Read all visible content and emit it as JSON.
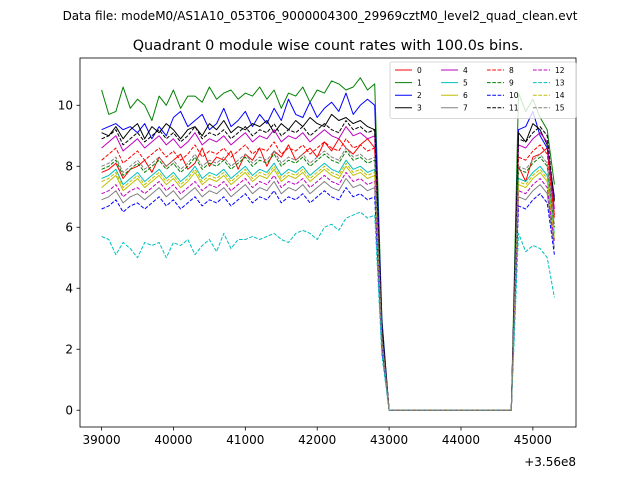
{
  "chart_data": {
    "type": "line",
    "suptitle": "Data file: modeM0/AS1A10_053T06_9000004300_29969cztM0_level2_quad_clean.evt",
    "title": "Quadrant 0 module wise count rates with 100.0s bins.",
    "xlabel": "",
    "ylabel": "",
    "x_offset_label": "+3.56e8",
    "xlim": [
      38700,
      45600
    ],
    "ylim": [
      -0.55,
      11.55
    ],
    "xticks": [
      39000,
      40000,
      41000,
      42000,
      43000,
      44000,
      45000
    ],
    "yticks": [
      0,
      2,
      4,
      6,
      8,
      10
    ],
    "x": [
      39000,
      39100,
      39200,
      39300,
      39400,
      39500,
      39600,
      39700,
      39800,
      39900,
      40000,
      40100,
      40200,
      40300,
      40400,
      40500,
      40600,
      40700,
      40800,
      40900,
      41000,
      41100,
      41200,
      41300,
      41400,
      41500,
      41600,
      41700,
      41800,
      41900,
      42000,
      42100,
      42200,
      42300,
      42400,
      42500,
      42600,
      42700,
      42800,
      42900,
      43000,
      43100,
      43200,
      43300,
      43400,
      43500,
      43600,
      43700,
      43800,
      43900,
      44000,
      44100,
      44200,
      44300,
      44400,
      44500,
      44600,
      44700,
      44800,
      44900,
      45000,
      45100,
      45200,
      45300
    ],
    "legend_loc": "upper right",
    "series": [
      {
        "name": "0",
        "color": "#ff0000",
        "dash": "solid",
        "values": [
          7.8,
          7.9,
          8.1,
          7.6,
          7.9,
          8.0,
          8.2,
          7.8,
          8.3,
          8.0,
          8.2,
          8.4,
          7.9,
          8.1,
          8.6,
          8.0,
          8.3,
          8.2,
          8.5,
          7.9,
          8.4,
          8.2,
          8.6,
          8.0,
          8.5,
          8.3,
          8.7,
          8.2,
          8.4,
          8.6,
          8.3,
          8.8,
          8.5,
          8.9,
          8.6,
          8.4,
          8.7,
          8.9,
          8.6,
          2.5,
          0,
          0,
          0,
          0,
          0,
          0,
          0,
          0,
          0,
          0,
          0,
          0,
          0,
          0,
          0,
          0,
          0,
          0,
          8.0,
          7.5,
          8.3,
          8.4,
          8.6,
          6.4
        ]
      },
      {
        "name": "1",
        "color": "#008000",
        "dash": "solid",
        "values": [
          10.5,
          9.7,
          9.8,
          10.6,
          9.9,
          10.2,
          10.0,
          9.5,
          10.3,
          10.0,
          10.5,
          9.9,
          10.3,
          10.3,
          10.1,
          10.6,
          10.2,
          10.4,
          10.5,
          10.2,
          10.4,
          10.3,
          10.6,
          10.2,
          10.5,
          9.9,
          10.4,
          10.3,
          10.6,
          10.1,
          10.5,
          10.4,
          10.8,
          10.7,
          10.5,
          10.6,
          10.9,
          10.5,
          10.7,
          3.0,
          0,
          0,
          0,
          0,
          0,
          0,
          0,
          0,
          0,
          0,
          0,
          0,
          0,
          0,
          0,
          0,
          0,
          0,
          10.4,
          9.8,
          10.2,
          9.6,
          9.2,
          7.4
        ]
      },
      {
        "name": "2",
        "color": "#0000ff",
        "dash": "solid",
        "values": [
          9.2,
          9.3,
          9.4,
          9.2,
          9.3,
          9.1,
          9.4,
          8.9,
          9.3,
          9.0,
          9.6,
          9.8,
          9.3,
          9.5,
          9.7,
          9.2,
          9.4,
          9.9,
          9.3,
          9.5,
          9.8,
          9.3,
          9.7,
          9.4,
          9.9,
          9.5,
          10.2,
          9.7,
          9.6,
          10.1,
          9.6,
          9.9,
          10.1,
          9.8,
          10.4,
          9.7,
          10.0,
          10.2,
          10.0,
          2.9,
          0,
          0,
          0,
          0,
          0,
          0,
          0,
          0,
          0,
          0,
          0,
          0,
          0,
          0,
          0,
          0,
          0,
          0,
          9.2,
          9.3,
          9.8,
          9.0,
          8.6,
          7.0
        ]
      },
      {
        "name": "3",
        "color": "#000000",
        "dash": "solid",
        "values": [
          9.1,
          9.0,
          9.3,
          8.9,
          9.2,
          9.4,
          8.9,
          9.3,
          9.1,
          9.4,
          9.2,
          8.9,
          9.2,
          9.3,
          9.0,
          9.4,
          9.2,
          9.5,
          9.1,
          9.3,
          9.2,
          9.4,
          9.3,
          9.5,
          9.1,
          9.4,
          9.2,
          9.5,
          9.3,
          9.6,
          9.4,
          9.3,
          9.7,
          9.5,
          9.6,
          9.4,
          9.5,
          9.3,
          9.2,
          2.7,
          0,
          0,
          0,
          0,
          0,
          0,
          0,
          0,
          0,
          0,
          0,
          0,
          0,
          0,
          0,
          0,
          0,
          0,
          9.1,
          8.8,
          9.4,
          9.2,
          8.7,
          6.9
        ]
      },
      {
        "name": "4",
        "color": "#bf00bf",
        "dash": "solid",
        "values": [
          8.6,
          8.8,
          9.0,
          8.5,
          8.7,
          8.9,
          8.6,
          8.8,
          9.0,
          8.7,
          8.9,
          8.6,
          8.8,
          9.1,
          8.7,
          8.9,
          8.8,
          9.0,
          8.7,
          8.9,
          9.1,
          8.8,
          9.0,
          8.9,
          9.2,
          8.8,
          9.0,
          8.9,
          9.1,
          8.8,
          9.0,
          9.2,
          9.0,
          8.9,
          9.3,
          9.0,
          9.1,
          8.9,
          9.0,
          2.6,
          0,
          0,
          0,
          0,
          0,
          0,
          0,
          0,
          0,
          0,
          0,
          0,
          0,
          0,
          0,
          0,
          0,
          0,
          8.7,
          8.6,
          8.9,
          9.1,
          8.8,
          6.6
        ]
      },
      {
        "name": "5",
        "color": "#00bfbf",
        "dash": "solid",
        "values": [
          7.6,
          7.7,
          7.9,
          7.4,
          7.6,
          7.8,
          7.5,
          7.7,
          7.9,
          7.6,
          7.8,
          7.5,
          7.7,
          8.0,
          7.6,
          7.8,
          7.7,
          7.9,
          7.6,
          7.8,
          8.0,
          7.7,
          7.9,
          7.8,
          8.1,
          7.7,
          7.9,
          7.8,
          8.0,
          7.7,
          7.9,
          8.1,
          7.9,
          7.8,
          8.2,
          7.9,
          8.0,
          7.8,
          7.9,
          2.3,
          0,
          0,
          0,
          0,
          0,
          0,
          0,
          0,
          0,
          0,
          0,
          0,
          0,
          0,
          0,
          0,
          0,
          0,
          7.6,
          7.5,
          7.8,
          8.0,
          7.7,
          5.8
        ]
      },
      {
        "name": "6",
        "color": "#bfbf00",
        "dash": "solid",
        "values": [
          7.3,
          7.5,
          7.7,
          7.2,
          7.4,
          7.6,
          7.3,
          7.5,
          7.7,
          7.4,
          7.6,
          7.3,
          7.5,
          7.8,
          7.4,
          7.6,
          7.5,
          7.7,
          7.4,
          7.6,
          7.8,
          7.5,
          7.7,
          7.6,
          7.9,
          7.5,
          7.7,
          7.6,
          7.8,
          7.5,
          7.7,
          7.9,
          7.7,
          7.6,
          8.0,
          7.7,
          7.8,
          7.6,
          7.7,
          2.2,
          0,
          0,
          0,
          0,
          0,
          0,
          0,
          0,
          0,
          0,
          0,
          0,
          0,
          0,
          0,
          0,
          0,
          0,
          7.4,
          7.3,
          7.6,
          7.8,
          7.5,
          5.6
        ]
      },
      {
        "name": "7",
        "color": "#808080",
        "dash": "solid",
        "values": [
          6.9,
          7.0,
          7.2,
          6.8,
          7.0,
          7.1,
          6.9,
          7.1,
          7.3,
          7.0,
          7.2,
          6.9,
          7.1,
          7.3,
          7.0,
          7.2,
          7.1,
          7.3,
          7.0,
          7.2,
          7.4,
          7.1,
          7.3,
          7.2,
          7.5,
          7.1,
          7.3,
          7.2,
          7.4,
          7.1,
          7.3,
          7.5,
          7.3,
          7.2,
          7.6,
          7.3,
          7.4,
          7.2,
          7.3,
          2.1,
          0,
          0,
          0,
          0,
          0,
          0,
          0,
          0,
          0,
          0,
          0,
          0,
          0,
          0,
          0,
          0,
          0,
          0,
          7.0,
          6.9,
          7.2,
          7.4,
          7.1,
          5.3
        ]
      },
      {
        "name": "8",
        "color": "#ff0000",
        "dash": "dashed",
        "values": [
          8.2,
          8.4,
          8.6,
          8.1,
          8.3,
          8.5,
          8.2,
          8.4,
          8.6,
          8.3,
          8.5,
          8.2,
          8.4,
          8.7,
          8.3,
          8.5,
          8.4,
          8.6,
          8.3,
          8.5,
          8.7,
          8.4,
          8.6,
          8.5,
          8.8,
          8.4,
          8.6,
          8.5,
          8.7,
          8.4,
          8.6,
          8.8,
          8.6,
          8.5,
          8.9,
          8.6,
          8.7,
          8.5,
          8.6,
          2.5,
          0,
          0,
          0,
          0,
          0,
          0,
          0,
          0,
          0,
          0,
          0,
          0,
          0,
          0,
          0,
          0,
          0,
          0,
          8.3,
          8.2,
          8.5,
          8.7,
          8.4,
          6.3
        ]
      },
      {
        "name": "9",
        "color": "#008000",
        "dash": "dashed",
        "values": [
          7.9,
          8.0,
          8.2,
          7.7,
          7.9,
          8.1,
          7.8,
          8.0,
          8.2,
          7.9,
          8.1,
          7.8,
          8.0,
          8.3,
          7.9,
          8.1,
          8.0,
          8.2,
          7.9,
          8.1,
          8.3,
          8.0,
          8.2,
          8.1,
          8.4,
          8.0,
          8.2,
          8.1,
          8.3,
          8.0,
          8.2,
          8.4,
          8.2,
          8.1,
          8.5,
          8.2,
          8.3,
          8.1,
          8.2,
          2.4,
          0,
          0,
          0,
          0,
          0,
          0,
          0,
          0,
          0,
          0,
          0,
          0,
          0,
          0,
          0,
          0,
          0,
          0,
          7.9,
          7.8,
          8.1,
          8.3,
          8.0,
          6.0
        ]
      },
      {
        "name": "10",
        "color": "#0000ff",
        "dash": "dashed",
        "values": [
          6.6,
          6.7,
          6.9,
          6.5,
          6.7,
          6.8,
          6.6,
          6.8,
          7.0,
          6.7,
          6.9,
          6.6,
          6.8,
          7.0,
          6.7,
          6.9,
          6.8,
          7.0,
          6.7,
          6.9,
          7.1,
          6.8,
          7.0,
          6.9,
          7.2,
          6.8,
          7.0,
          6.9,
          7.1,
          6.8,
          7.0,
          7.2,
          7.0,
          6.9,
          7.3,
          7.0,
          7.1,
          6.9,
          7.0,
          2.0,
          0,
          0,
          0,
          0,
          0,
          0,
          0,
          0,
          0,
          0,
          0,
          0,
          0,
          0,
          0,
          0,
          0,
          0,
          6.7,
          6.6,
          6.9,
          7.1,
          6.8,
          5.1
        ]
      },
      {
        "name": "11",
        "color": "#000000",
        "dash": "dashed",
        "values": [
          8.9,
          9.0,
          9.2,
          8.7,
          8.9,
          9.1,
          8.8,
          9.0,
          9.2,
          8.9,
          9.1,
          8.8,
          9.0,
          9.3,
          8.9,
          9.1,
          9.0,
          9.2,
          8.9,
          9.1,
          9.3,
          9.0,
          9.2,
          9.1,
          9.4,
          9.0,
          9.2,
          9.1,
          9.3,
          9.0,
          9.2,
          9.4,
          9.2,
          9.1,
          9.5,
          9.2,
          9.3,
          9.1,
          9.2,
          2.7,
          0,
          0,
          0,
          0,
          0,
          0,
          0,
          0,
          0,
          0,
          0,
          0,
          0,
          0,
          0,
          0,
          0,
          0,
          8.9,
          8.8,
          9.1,
          9.3,
          9.0,
          6.8
        ]
      },
      {
        "name": "12",
        "color": "#bf00bf",
        "dash": "dashed",
        "values": [
          7.1,
          7.2,
          7.4,
          7.0,
          7.2,
          7.3,
          7.1,
          7.3,
          7.5,
          7.2,
          7.4,
          7.1,
          7.3,
          7.5,
          7.2,
          7.4,
          7.3,
          7.5,
          7.2,
          7.4,
          7.6,
          7.3,
          7.5,
          7.4,
          7.7,
          7.3,
          7.5,
          7.4,
          7.6,
          7.3,
          7.5,
          7.7,
          7.5,
          7.4,
          7.8,
          7.5,
          7.6,
          7.4,
          7.5,
          2.2,
          0,
          0,
          0,
          0,
          0,
          0,
          0,
          0,
          0,
          0,
          0,
          0,
          0,
          0,
          0,
          0,
          0,
          0,
          7.2,
          7.1,
          7.4,
          7.6,
          7.3,
          5.5
        ]
      },
      {
        "name": "13",
        "color": "#00bfbf",
        "dash": "dashed",
        "values": [
          5.7,
          5.6,
          5.1,
          5.5,
          5.3,
          5.0,
          5.5,
          5.4,
          5.5,
          5.0,
          5.5,
          5.4,
          5.6,
          5.1,
          5.4,
          5.6,
          5.2,
          5.8,
          5.3,
          5.6,
          5.6,
          5.7,
          5.6,
          5.7,
          5.8,
          5.6,
          5.5,
          5.8,
          5.9,
          5.8,
          5.6,
          6.0,
          6.1,
          5.9,
          6.3,
          6.4,
          6.5,
          6.3,
          6.4,
          1.8,
          0,
          0,
          0,
          0,
          0,
          0,
          0,
          0,
          0,
          0,
          0,
          0,
          0,
          0,
          0,
          0,
          0,
          0,
          5.8,
          5.2,
          5.4,
          5.3,
          5.0,
          3.7
        ]
      },
      {
        "name": "14",
        "color": "#bfbf00",
        "dash": "dashed",
        "values": [
          7.5,
          7.6,
          7.8,
          7.3,
          7.5,
          7.7,
          7.4,
          7.6,
          7.8,
          7.5,
          7.7,
          7.4,
          7.6,
          7.9,
          7.5,
          7.7,
          7.6,
          7.8,
          7.5,
          7.7,
          7.9,
          7.6,
          7.8,
          7.7,
          8.0,
          7.6,
          7.8,
          7.7,
          7.9,
          7.6,
          7.8,
          8.0,
          7.8,
          7.7,
          8.1,
          7.8,
          7.9,
          7.7,
          7.8,
          2.3,
          0,
          0,
          0,
          0,
          0,
          0,
          0,
          0,
          0,
          0,
          0,
          0,
          0,
          0,
          0,
          0,
          0,
          0,
          7.5,
          7.4,
          7.7,
          7.9,
          7.6,
          5.7
        ]
      },
      {
        "name": "15",
        "color": "#808080",
        "dash": "dashed",
        "values": [
          8.0,
          8.1,
          8.3,
          7.8,
          8.0,
          8.2,
          7.9,
          8.1,
          8.3,
          8.0,
          8.2,
          7.9,
          8.1,
          8.4,
          8.0,
          8.2,
          8.1,
          8.3,
          8.0,
          8.2,
          8.4,
          8.1,
          8.3,
          8.2,
          8.5,
          8.1,
          8.3,
          8.2,
          8.4,
          8.1,
          8.3,
          8.5,
          8.3,
          8.2,
          8.6,
          8.3,
          8.4,
          8.2,
          8.3,
          2.4,
          0,
          0,
          0,
          0,
          0,
          0,
          0,
          0,
          0,
          0,
          0,
          0,
          0,
          0,
          0,
          0,
          0,
          0,
          8.0,
          7.9,
          8.2,
          8.4,
          8.1,
          6.1
        ]
      }
    ]
  }
}
